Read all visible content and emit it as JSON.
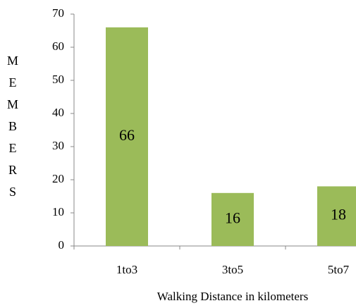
{
  "chart_data": {
    "type": "bar",
    "x_label": "Walking Distance in kilometers",
    "y_label": "MEMBERS",
    "categories": [
      "1to3",
      "3to5",
      "5to7"
    ],
    "values": [
      66,
      16,
      18
    ],
    "color": "#9bbb59",
    "ylim": [
      0,
      70
    ],
    "yticks": [
      0,
      10,
      20,
      30,
      40,
      50,
      60,
      70
    ],
    "grid": false
  }
}
